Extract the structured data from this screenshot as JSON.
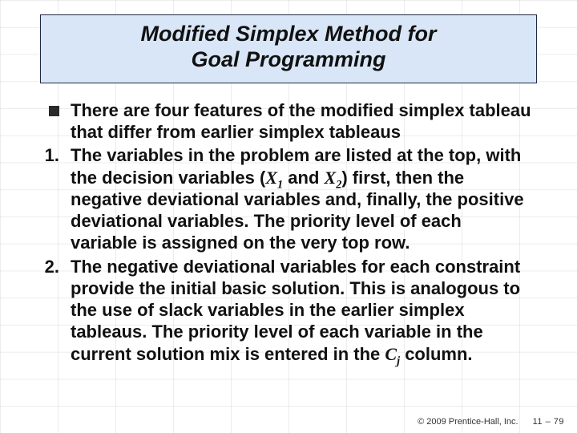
{
  "colors": {
    "title_bg": "#d9e6f7",
    "title_border": "#1f2a44",
    "text": "#111111",
    "grid": "rgba(200,200,200,0.35)",
    "background": "#ffffff"
  },
  "typography": {
    "title_fontsize_pt": 20,
    "body_fontsize_pt": 16,
    "footer_fontsize_pt": 8,
    "title_style": "bold italic",
    "body_style": "bold"
  },
  "title": {
    "line1": "Modified Simplex Method for",
    "line2": "Goal Programming"
  },
  "bullets": {
    "intro": "There are four features of the modified simplex tableau that differ from earlier simplex tableaus",
    "one_pre": "The variables in the problem are listed at the top, with the decision variables (",
    "one_x1": "X",
    "one_sub1": "1",
    "one_and": " and ",
    "one_x2": "X",
    "one_sub2": "2",
    "one_post": ") first, then the negative deviational variables and, finally, the positive deviational variables. The priority level of each variable is assigned on the very top row.",
    "two_pre": "The negative deviational variables for each constraint provide the initial basic solution. This is analogous to the use of slack variables in the earlier simplex tableaus. The priority level of each variable in the current solution mix is entered in the ",
    "two_cj": "C",
    "two_cj_sub": "j",
    "two_post": " column."
  },
  "markers": {
    "one": "1.",
    "two": "2."
  },
  "footer": {
    "copyright": "© 2009 Prentice-Hall, Inc.",
    "page": "11 – 79"
  }
}
